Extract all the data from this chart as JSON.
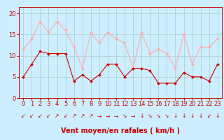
{
  "hours": [
    0,
    1,
    2,
    3,
    4,
    5,
    6,
    7,
    8,
    9,
    10,
    11,
    12,
    13,
    14,
    15,
    16,
    17,
    18,
    19,
    20,
    21,
    22,
    23
  ],
  "wind_avg": [
    5,
    8,
    11,
    10.5,
    10.5,
    10.5,
    4,
    5.5,
    4,
    5.5,
    8,
    8,
    5,
    7,
    7,
    6.5,
    3.5,
    3.5,
    3.5,
    6,
    5,
    5,
    4,
    8
  ],
  "wind_gust": [
    11.5,
    14,
    18,
    15.5,
    18,
    16,
    12,
    7,
    15.5,
    13,
    15.5,
    14,
    13,
    7,
    15.5,
    10.5,
    11.5,
    10.5,
    7,
    15,
    8,
    12,
    12,
    14
  ],
  "avg_color": "#cc0000",
  "gust_color": "#ffaaaa",
  "bg_color": "#cceeff",
  "grid_color": "#aacccc",
  "xlabel": "Vent moyen/en rafales ( km/h )",
  "xlabel_color": "#cc0000",
  "ylabel_ticks": [
    0,
    5,
    10,
    15,
    20
  ],
  "xlim": [
    -0.5,
    23.5
  ],
  "ylim": [
    0,
    21.5
  ],
  "tick_color": "#cc0000",
  "tick_fontsize": 6,
  "xlabel_fontsize": 7,
  "arrow_symbols": [
    "↙",
    "↙",
    "↙",
    "↙",
    "↗",
    "↙",
    "↗",
    "↗",
    "↗",
    "→",
    "→",
    "→",
    "↘",
    "→",
    "↓",
    "↘",
    "↘",
    "↘",
    "↓",
    "↓",
    "↓",
    "↓",
    "↙",
    "↓"
  ]
}
